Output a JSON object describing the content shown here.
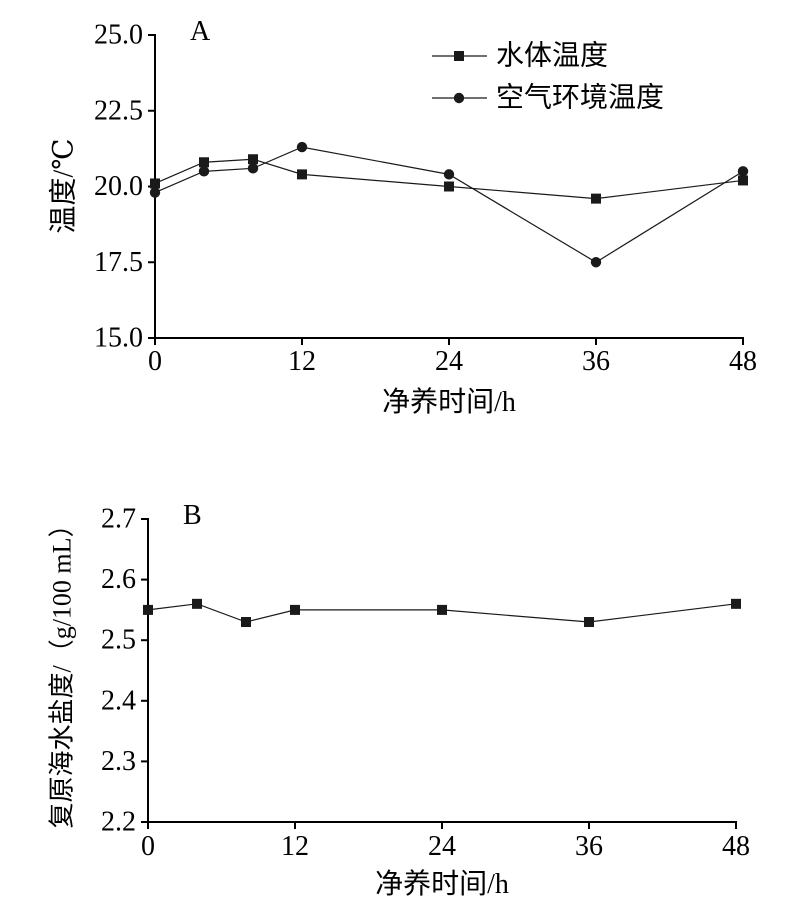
{
  "chart_data": [
    {
      "panel_label": "A",
      "type": "line",
      "xlabel": "净养时间/h",
      "ylabel": "温度/℃",
      "xlim": [
        0,
        48
      ],
      "ylim": [
        15,
        25
      ],
      "x_ticks": [
        "0",
        "12",
        "24",
        "36",
        "48"
      ],
      "y_ticks": [
        "15.0",
        "17.5",
        "20.0",
        "22.5",
        "25.0"
      ],
      "grid": false,
      "legend": "top-right",
      "x": [
        0,
        4,
        8,
        12,
        24,
        36,
        48
      ],
      "series": [
        {
          "name": "水体温度",
          "marker": "square",
          "values": [
            20.1,
            20.8,
            20.9,
            20.4,
            20.0,
            19.6,
            20.2
          ]
        },
        {
          "name": "空气环境温度",
          "marker": "circle",
          "values": [
            19.8,
            20.5,
            20.6,
            21.3,
            20.4,
            17.5,
            20.5
          ]
        }
      ]
    },
    {
      "panel_label": "B",
      "type": "line",
      "xlabel": "净养时间/h",
      "ylabel": "复原海水盐度/（g/100 mL）",
      "xlim": [
        0,
        48
      ],
      "ylim": [
        2.2,
        2.7
      ],
      "x_ticks": [
        "0",
        "12",
        "24",
        "36",
        "48"
      ],
      "y_ticks": [
        "2.2",
        "2.3",
        "2.4",
        "2.5",
        "2.6",
        "2.7"
      ],
      "grid": false,
      "legend": "none",
      "x": [
        0,
        4,
        8,
        12,
        24,
        36,
        48
      ],
      "series": [
        {
          "marker": "square",
          "values": [
            2.55,
            2.56,
            2.53,
            2.55,
            2.55,
            2.53,
            2.56
          ]
        }
      ]
    }
  ],
  "colors": {
    "line": "#1a1a1a",
    "marker": "#1a1a1a",
    "axis": "#000000",
    "text": "#000000",
    "background": "#ffffff"
  }
}
